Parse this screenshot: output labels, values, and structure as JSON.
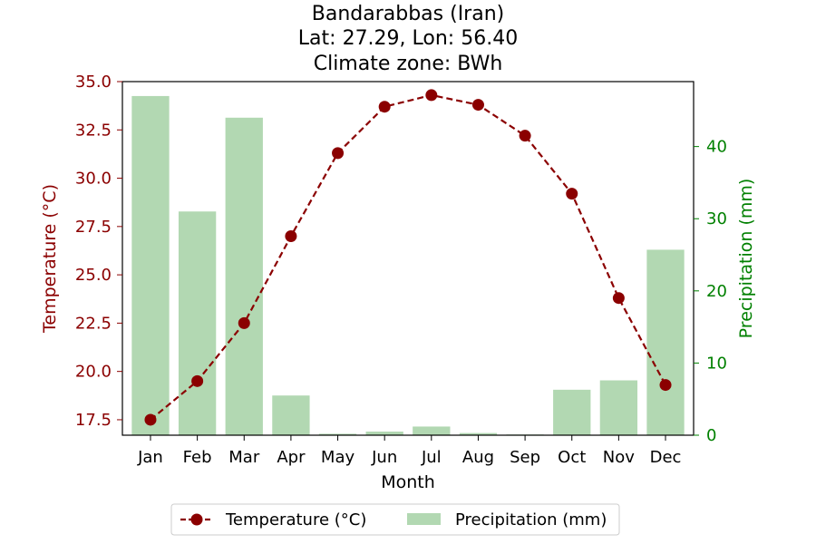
{
  "chart_data": {
    "type": "bar+line",
    "title": [
      "Bandarabbas (Iran)",
      "Lat: 27.29, Lon: 56.40",
      "Climate zone: BWh"
    ],
    "xlabel": "Month",
    "ylabel_left": "Temperature (°C)",
    "ylabel_right": "Precipitation (mm)",
    "categories": [
      "Jan",
      "Feb",
      "Mar",
      "Apr",
      "May",
      "Jun",
      "Jul",
      "Aug",
      "Sep",
      "Oct",
      "Nov",
      "Dec"
    ],
    "temperature": {
      "name": "Temperature (°C)",
      "values": [
        17.5,
        19.5,
        22.5,
        27.0,
        31.3,
        33.7,
        34.3,
        33.8,
        32.2,
        29.2,
        23.8,
        19.3
      ],
      "color": "#8b0000"
    },
    "precipitation": {
      "name": "Precipitation (mm)",
      "values": [
        47.0,
        31.0,
        44.0,
        5.5,
        0.2,
        0.5,
        1.2,
        0.3,
        0.1,
        6.3,
        7.6,
        25.7
      ],
      "color": "#b2d8b2"
    },
    "ylim_left": [
      16.7,
      35.0
    ],
    "yticks_left": [
      "17.5",
      "20.0",
      "22.5",
      "25.0",
      "27.5",
      "30.0",
      "32.5",
      "35.0"
    ],
    "ylim_right": [
      0,
      49
    ],
    "yticks_right": [
      "0",
      "10",
      "20",
      "30",
      "40"
    ],
    "left_axis_color": "#8b0000",
    "right_axis_color": "#008000",
    "legend_position": "bottom-center",
    "grid": false
  }
}
